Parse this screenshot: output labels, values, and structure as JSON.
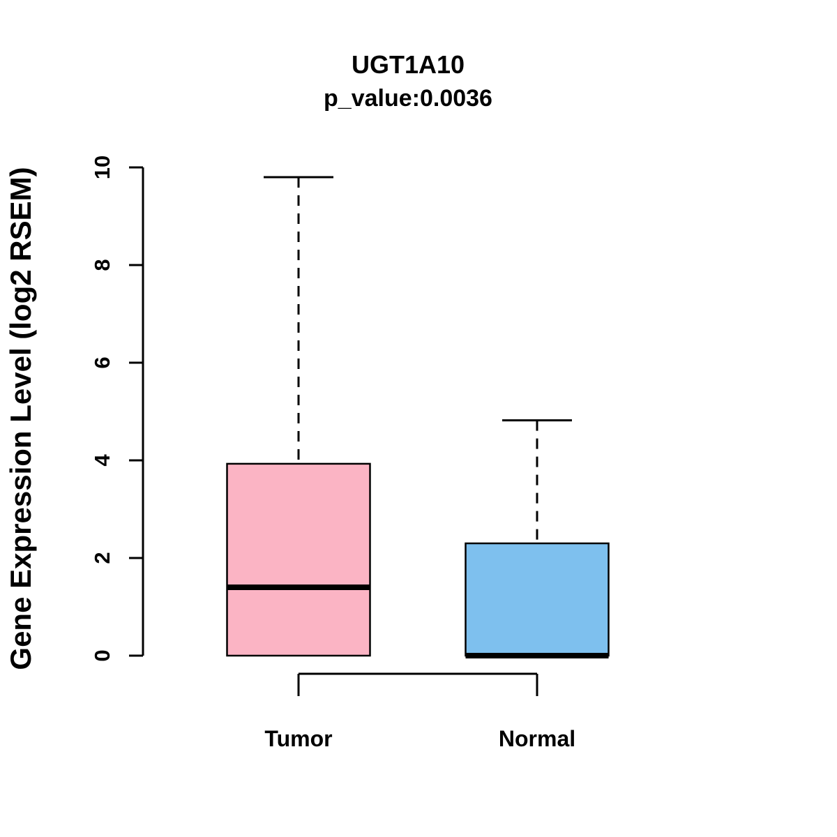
{
  "chart_data": {
    "type": "boxplot",
    "title": "UGT1A10",
    "subtitle": "p_value:0.0036",
    "ylabel": "Gene Expression Level (log2 RSEM)",
    "xlabel": "",
    "ylim": [
      0,
      10
    ],
    "yticks": [
      0,
      2,
      4,
      6,
      8,
      10
    ],
    "grid": false,
    "legend": "none",
    "groups": [
      {
        "name": "Tumor",
        "color": "#FBB4C4",
        "whisker_low": 0,
        "q1": 0,
        "median": 1.4,
        "q3": 3.93,
        "whisker_high": 9.8
      },
      {
        "name": "Normal",
        "color": "#7EC0EE",
        "whisker_low": 0,
        "q1": 0,
        "median": 0,
        "q3": 2.3,
        "whisker_high": 4.82
      }
    ]
  }
}
